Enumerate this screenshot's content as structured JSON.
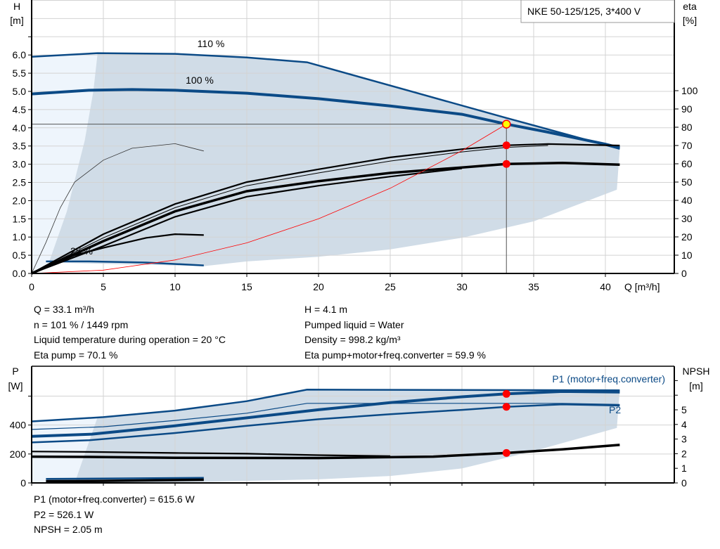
{
  "chart_data": [
    {
      "type": "line",
      "title": "NKE 50-125/125, 3*400 V",
      "xlabel": "Q [m³/h]",
      "ylabel": "H\n[m]",
      "y2label": "eta\n[%]",
      "xlim": [
        0,
        44.8
      ],
      "ylim": [
        0,
        7.5
      ],
      "y2lim": [
        0,
        144
      ],
      "xticks": [
        "0",
        "5",
        "10",
        "15",
        "20",
        "25",
        "30",
        "35",
        "40"
      ],
      "yticks": [
        "0.0",
        "0.5",
        "1.0",
        "1.5",
        "2.0",
        "2.5",
        "3.0",
        "3.5",
        "4.0",
        "4.5",
        "5.0",
        "5.5",
        "6.0"
      ],
      "y2ticks": [
        "0",
        "10",
        "20",
        "30",
        "40",
        "50",
        "60",
        "70",
        "80",
        "90",
        "100"
      ],
      "grid": true,
      "curve_labels": [
        "110 %",
        "100 %",
        "25 %"
      ],
      "colors": {
        "head": "#0b4a86",
        "eta": "#000000",
        "system": "#ff0000",
        "area": "#d0dce7",
        "area_light": "#eef5fc",
        "point": "#ff0000",
        "duty": "#ffff00"
      },
      "series": [
        {
          "axis": "H",
          "style": "head",
          "points": [
            [
              0,
              5.95
            ],
            [
              4.6,
              6.05
            ],
            [
              10,
              6.03
            ],
            [
              15,
              5.93
            ],
            [
              19.2,
              5.8
            ],
            [
              33.1,
              4.27
            ],
            [
              41,
              3.42
            ]
          ]
        },
        {
          "axis": "H",
          "style": "head-thick",
          "points": [
            [
              0,
              4.93
            ],
            [
              4,
              5.03
            ],
            [
              7,
              5.05
            ],
            [
              10,
              5.03
            ],
            [
              15,
              4.95
            ],
            [
              20,
              4.8
            ],
            [
              25,
              4.6
            ],
            [
              30,
              4.37
            ],
            [
              33.1,
              4.1
            ],
            [
              36,
              3.88
            ],
            [
              40,
              3.55
            ],
            [
              41,
              3.45
            ]
          ]
        },
        {
          "axis": "H",
          "style": "head",
          "points": [
            [
              1,
              0.33
            ],
            [
              4,
              0.33
            ],
            [
              8,
              0.3
            ],
            [
              12,
              0.22
            ]
          ]
        },
        {
          "axis": "eta",
          "style": "eta",
          "points": [
            [
              0,
              0
            ],
            [
              5,
              21.5
            ],
            [
              10,
              38
            ],
            [
              15,
              50
            ],
            [
              20,
              57
            ],
            [
              25,
              63.5
            ],
            [
              30,
              68
            ],
            [
              33.1,
              70.1
            ],
            [
              36,
              70.8
            ],
            [
              41,
              70
            ]
          ]
        },
        {
          "axis": "eta",
          "style": "eta-thin",
          "points": [
            [
              0,
              0
            ],
            [
              5,
              19.5
            ],
            [
              10,
              36
            ],
            [
              15,
              48
            ],
            [
              20,
              55
            ],
            [
              25,
              61.5
            ],
            [
              30,
              66.5
            ],
            [
              33.1,
              69
            ],
            [
              36,
              70
            ]
          ]
        },
        {
          "axis": "eta",
          "style": "eta-thick",
          "points": [
            [
              0,
              0
            ],
            [
              5,
              17.7
            ],
            [
              10,
              34
            ],
            [
              15,
              45
            ],
            [
              20,
              50.5
            ],
            [
              25,
              55
            ],
            [
              30,
              58
            ],
            [
              33.1,
              59.9
            ],
            [
              37,
              60.5
            ],
            [
              41,
              59.5
            ]
          ]
        },
        {
          "axis": "eta",
          "style": "eta",
          "points": [
            [
              0,
              0
            ],
            [
              5,
              15
            ],
            [
              10,
              31
            ],
            [
              15,
              42
            ],
            [
              20,
              48
            ],
            [
              25,
              53
            ],
            [
              30,
              57.5
            ]
          ]
        },
        {
          "axis": "eta",
          "style": "eta",
          "points": [
            [
              0,
              0
            ],
            [
              3,
              10
            ],
            [
              5,
              14
            ],
            [
              8,
              19.5
            ],
            [
              10,
              21.5
            ],
            [
              12,
              21
            ]
          ]
        },
        {
          "axis": "eta",
          "style": "eta-hair",
          "points": [
            [
              0,
              0
            ],
            [
              1,
              17
            ],
            [
              2,
              36
            ],
            [
              3,
              50
            ],
            [
              5,
              62
            ],
            [
              7,
              68.5
            ],
            [
              10,
              71
            ],
            [
              12,
              67
            ]
          ]
        }
      ],
      "system_curve": {
        "points": [
          [
            0,
            0
          ],
          [
            5,
            0.09
          ],
          [
            10,
            0.37
          ],
          [
            15,
            0.84
          ],
          [
            20,
            1.5
          ],
          [
            25,
            2.34
          ],
          [
            30,
            3.37
          ],
          [
            33.1,
            4.1
          ]
        ]
      },
      "area": {
        "points": [
          [
            1.2,
            0.3
          ],
          [
            2.45,
            1.7
          ],
          [
            3.7,
            3.65
          ],
          [
            4.3,
            5.0
          ],
          [
            4.6,
            6.05
          ],
          [
            10,
            6.03
          ],
          [
            15,
            5.93
          ],
          [
            19.2,
            5.8
          ],
          [
            41,
            3.42
          ],
          [
            40.8,
            2.3
          ],
          [
            35,
            1.43
          ],
          [
            30,
            0.98
          ],
          [
            25,
            0.66
          ],
          [
            20,
            0.46
          ],
          [
            15,
            0.33
          ],
          [
            12,
            0.2
          ]
        ]
      },
      "duty_point": {
        "Q": 33.1,
        "H": 4.1,
        "eta_pump": 70.1,
        "eta_total": 59.9
      }
    },
    {
      "type": "line",
      "ylabel": "P\n[W]",
      "y2label": "NPSH\n[m]",
      "xlim": [
        0,
        44.8
      ],
      "ylim": [
        0,
        807
      ],
      "y2lim": [
        0,
        8
      ],
      "yticks": [
        "0",
        "200",
        "400"
      ],
      "y2ticks": [
        "0",
        "1",
        "2",
        "3",
        "4",
        "5"
      ],
      "grid": true,
      "series_labels": [
        "P1 (motor+freq.converter)",
        "P2"
      ],
      "series": [
        {
          "axis": "P",
          "style": "head",
          "points": [
            [
              0,
              425
            ],
            [
              5,
              455
            ],
            [
              10,
              500
            ],
            [
              15,
              565
            ],
            [
              19.2,
              645
            ],
            [
              41,
              640
            ]
          ]
        },
        {
          "axis": "P",
          "style": "head-thin",
          "points": [
            [
              0,
              370
            ],
            [
              5,
              388
            ],
            [
              10,
              432
            ],
            [
              15,
              482
            ],
            [
              19.2,
              550
            ],
            [
              37,
              550
            ],
            [
              41,
              543
            ]
          ]
        },
        {
          "axis": "P",
          "style": "head-thick",
          "points": [
            [
              0,
              322
            ],
            [
              4.2,
              337
            ],
            [
              10,
              395
            ],
            [
              15,
              450
            ],
            [
              20,
              506
            ],
            [
              25,
              555
            ],
            [
              30,
              595
            ],
            [
              33.1,
              615.6
            ],
            [
              37,
              632
            ],
            [
              41,
              628
            ]
          ]
        },
        {
          "axis": "P",
          "style": "head",
          "points": [
            [
              0,
              280
            ],
            [
              4,
              295
            ],
            [
              10,
              345
            ],
            [
              15,
              395
            ],
            [
              20,
              440
            ],
            [
              25,
              475
            ],
            [
              30,
              505
            ],
            [
              33.1,
              526.1
            ],
            [
              37,
              543
            ],
            [
              41,
              535
            ]
          ]
        },
        {
          "axis": "P",
          "style": "head",
          "points": [
            [
              1,
              28
            ],
            [
              5,
              30
            ],
            [
              12,
              35
            ]
          ]
        },
        {
          "axis": "P",
          "style": "eta-thick",
          "points": [
            [
              1,
              12
            ],
            [
              5,
              14
            ],
            [
              12,
              22
            ]
          ]
        },
        {
          "axis": "NPSH",
          "style": "eta",
          "points": [
            [
              0,
              2.15
            ],
            [
              4,
              2.12
            ],
            [
              10,
              2.05
            ],
            [
              15,
              2.0
            ],
            [
              20,
              1.9
            ],
            [
              25,
              1.83
            ]
          ]
        },
        {
          "axis": "NPSH",
          "style": "eta-thick",
          "points": [
            [
              0,
              1.8
            ],
            [
              4,
              1.78
            ],
            [
              10,
              1.72
            ],
            [
              20,
              1.7
            ],
            [
              28,
              1.8
            ],
            [
              33.1,
              2.05
            ],
            [
              37,
              2.3
            ],
            [
              41,
              2.6
            ]
          ]
        }
      ],
      "area": {
        "points": [
          [
            3,
            0
          ],
          [
            4.6,
            455
          ],
          [
            10,
            500
          ],
          [
            15,
            565
          ],
          [
            19.2,
            645
          ],
          [
            41,
            640
          ],
          [
            40.8,
            380
          ],
          [
            35,
            220
          ],
          [
            30,
            100
          ],
          [
            25,
            48
          ],
          [
            20,
            25
          ],
          [
            12,
            8
          ]
        ]
      },
      "duty_points": {
        "P1": 615.6,
        "P2": 526.1,
        "NPSH": 2.05
      }
    }
  ],
  "info_top": {
    "left": [
      "Q = 33.1 m³/h",
      "n = 101 % / 1449 rpm",
      "Liquid temperature during operation = 20 °C",
      "Eta pump = 70.1 %"
    ],
    "right": [
      "H = 4.1 m",
      "Pumped liquid = Water",
      "Density = 998.2 kg/m³",
      "Eta pump+motor+freq.converter = 59.9 %"
    ]
  },
  "info_bottom": [
    "P1 (motor+freq.converter) = 615.6 W",
    "P2 = 526.1 W",
    "NPSH = 2.05 m"
  ]
}
